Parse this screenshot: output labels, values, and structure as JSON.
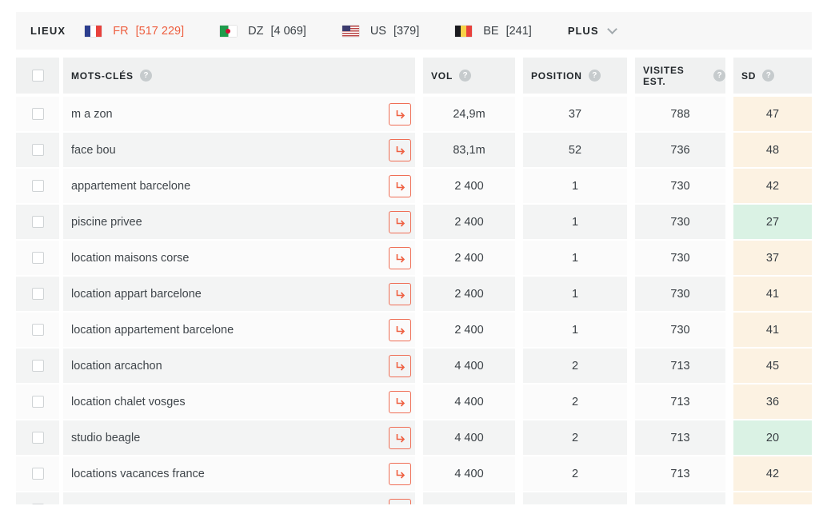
{
  "accent_color": "#ee5f40",
  "sd_high_color": "#fcf2e2",
  "sd_low_color": "#daf2e4",
  "icons": {
    "help": "?"
  },
  "topbar": {
    "label": "LIEUX",
    "more_label": "PLUS",
    "countries": [
      {
        "code": "FR",
        "count": "[517 229]",
        "flag": "fr",
        "active": true
      },
      {
        "code": "DZ",
        "count": "[4 069]",
        "flag": "dz",
        "active": false
      },
      {
        "code": "US",
        "count": "[379]",
        "flag": "us",
        "active": false
      },
      {
        "code": "BE",
        "count": "[241]",
        "flag": "be",
        "active": false
      }
    ]
  },
  "table": {
    "columns": {
      "keywords": "MOTS-CLÉS",
      "volume": "VOL",
      "position": "POSITION",
      "visits": "VISITES EST.",
      "sd": "SD"
    },
    "rows": [
      {
        "keyword": "m a zon",
        "vol": "24,9m",
        "position": "37",
        "visits": "788",
        "sd": "47",
        "sd_level": "high"
      },
      {
        "keyword": "face bou",
        "vol": "83,1m",
        "position": "52",
        "visits": "736",
        "sd": "48",
        "sd_level": "high"
      },
      {
        "keyword": "appartement barcelone",
        "vol": "2 400",
        "position": "1",
        "visits": "730",
        "sd": "42",
        "sd_level": "high"
      },
      {
        "keyword": "piscine privee",
        "vol": "2 400",
        "position": "1",
        "visits": "730",
        "sd": "27",
        "sd_level": "low"
      },
      {
        "keyword": "location maisons corse",
        "vol": "2 400",
        "position": "1",
        "visits": "730",
        "sd": "37",
        "sd_level": "high"
      },
      {
        "keyword": "location appart barcelone",
        "vol": "2 400",
        "position": "1",
        "visits": "730",
        "sd": "41",
        "sd_level": "high"
      },
      {
        "keyword": "location appartement barcelone",
        "vol": "2 400",
        "position": "1",
        "visits": "730",
        "sd": "41",
        "sd_level": "high"
      },
      {
        "keyword": "location arcachon",
        "vol": "4 400",
        "position": "2",
        "visits": "713",
        "sd": "45",
        "sd_level": "high"
      },
      {
        "keyword": "location chalet vosges",
        "vol": "4 400",
        "position": "2",
        "visits": "713",
        "sd": "36",
        "sd_level": "high"
      },
      {
        "keyword": "studio beagle",
        "vol": "4 400",
        "position": "2",
        "visits": "713",
        "sd": "20",
        "sd_level": "low"
      },
      {
        "keyword": "locations vacances france",
        "vol": "4 400",
        "position": "2",
        "visits": "713",
        "sd": "42",
        "sd_level": "high"
      }
    ]
  }
}
